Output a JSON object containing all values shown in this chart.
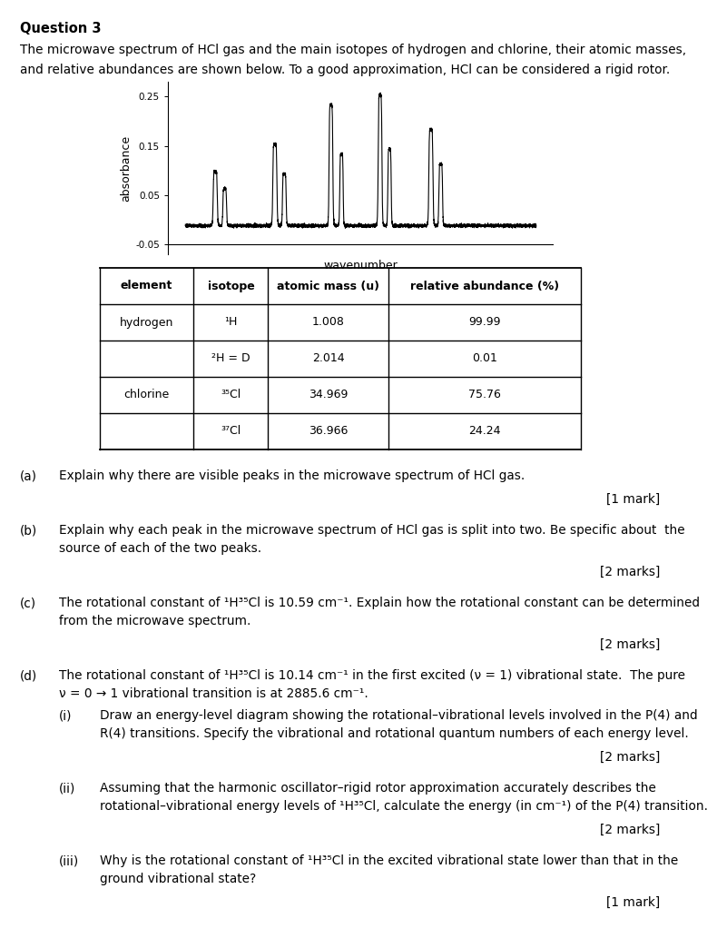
{
  "title": "Question 3",
  "intro_line1": "The microwave spectrum of HCl gas and the main isotopes of hydrogen and chlorine, their atomic masses,",
  "intro_line2": "and relative abundances are shown below. To a good approximation, HCl can be considered a rigid rotor.",
  "spectrum_ylabel": "absorbance",
  "spectrum_xlabel": "wavenumber",
  "spectrum_yticks": [
    -0.05,
    0.05,
    0.15,
    0.25
  ],
  "spectrum_ylim": [
    -0.07,
    0.28
  ],
  "table_headers": [
    "element",
    "isotope",
    "atomic mass (u)",
    "relative abundance (%)"
  ],
  "table_data": [
    [
      "hydrogen",
      "¹H",
      "1.008",
      "99.99"
    ],
    [
      "",
      "²H = D",
      "2.014",
      "0.01"
    ],
    [
      "chlorine",
      "³⁵Cl",
      "34.969",
      "75.76"
    ],
    [
      "",
      "³⁷Cl",
      "36.966",
      "24.24"
    ]
  ],
  "questions": [
    {
      "label": "(a)",
      "text1": "Explain why there are visible peaks in the microwave spectrum of HCl gas.",
      "text2": null,
      "mark": "[1 mark]",
      "indent": false,
      "sub": false
    },
    {
      "label": "(b)",
      "text1": "Explain why each peak in the microwave spectrum of HCl gas is split into two. Be specific about  the",
      "text2": "source of each of the two peaks.",
      "mark": "[2 marks]",
      "indent": false,
      "sub": false
    },
    {
      "label": "(c)",
      "text1": "The rotational constant of ¹H³⁵Cl is 10.59 cm⁻¹. Explain how the rotational constant can be determined",
      "text2": "from the microwave spectrum.",
      "mark": "[2 marks]",
      "indent": false,
      "sub": false
    },
    {
      "label": "(d)",
      "text1": "The rotational constant of ¹H³⁵Cl is 10.14 cm⁻¹ in the first excited (ν = 1) vibrational state.  The pure",
      "text2": "ν = 0 → 1 vibrational transition is at 2885.6 cm⁻¹.",
      "mark": null,
      "indent": false,
      "sub": false
    },
    {
      "label": "(i)",
      "text1": "Draw an energy-level diagram showing the rotational–vibrational levels involved in the P(4) and",
      "text2": "R(4) transitions. Specify the vibrational and rotational quantum numbers of each energy level.",
      "mark": "[2 marks]",
      "indent": true,
      "sub": true
    },
    {
      "label": "(ii)",
      "text1": "Assuming that the harmonic oscillator–rigid rotor approximation accurately describes the",
      "text2": "rotational–vibrational energy levels of ¹H³⁵Cl, calculate the energy (in cm⁻¹) of the P(4) transition.",
      "mark": "[2 marks]",
      "indent": true,
      "sub": true
    },
    {
      "label": "(iii)",
      "text1": "Why is the rotational constant of ¹H³⁵Cl in the excited vibrational state lower than that in the",
      "text2": "ground vibrational state?",
      "mark": "[1 mark]",
      "indent": true,
      "sub": true
    }
  ],
  "bg_color": "#ffffff"
}
